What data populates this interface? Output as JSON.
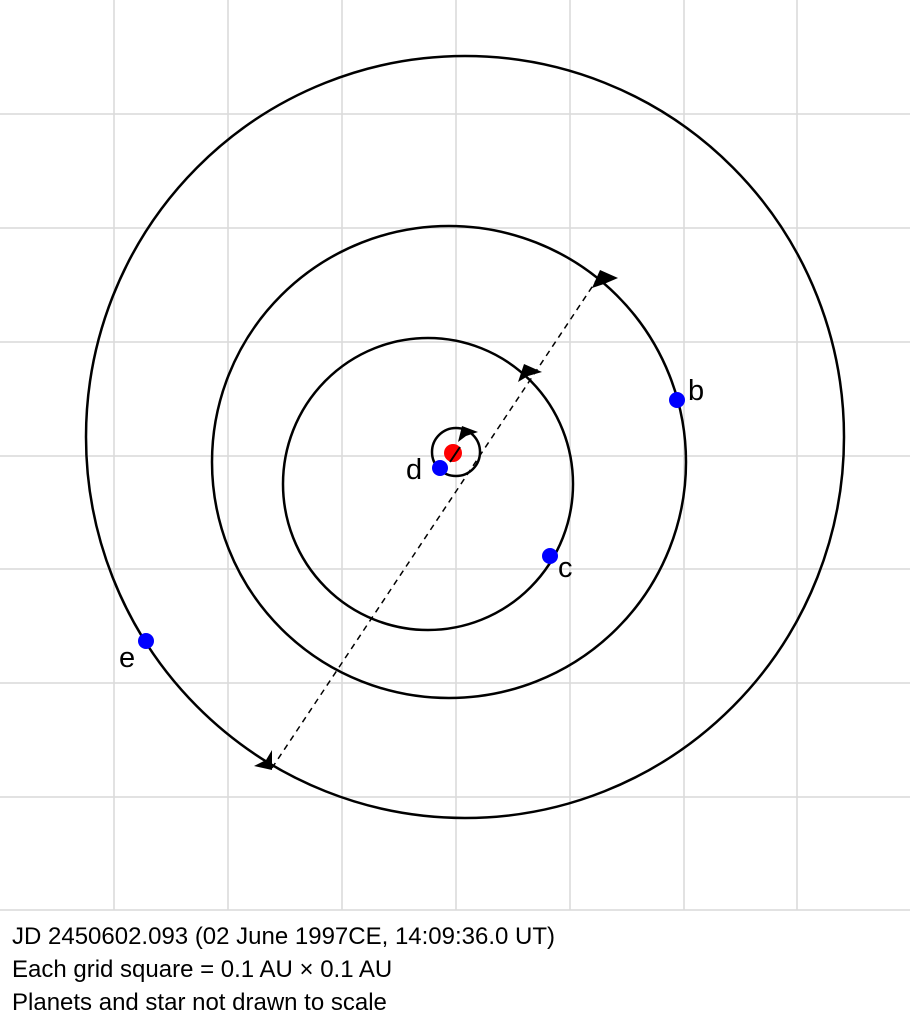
{
  "planets": [
    {
      "label": "b"
    },
    {
      "label": "c"
    },
    {
      "label": "d"
    },
    {
      "label": "e"
    }
  ],
  "caption": [
    "JD 2450602.093 (02 June 1997CE, 14:09:36.0 UT)",
    "Each grid square = 0.1 AU × 0.1 AU",
    "Planets and star not drawn to scale"
  ]
}
